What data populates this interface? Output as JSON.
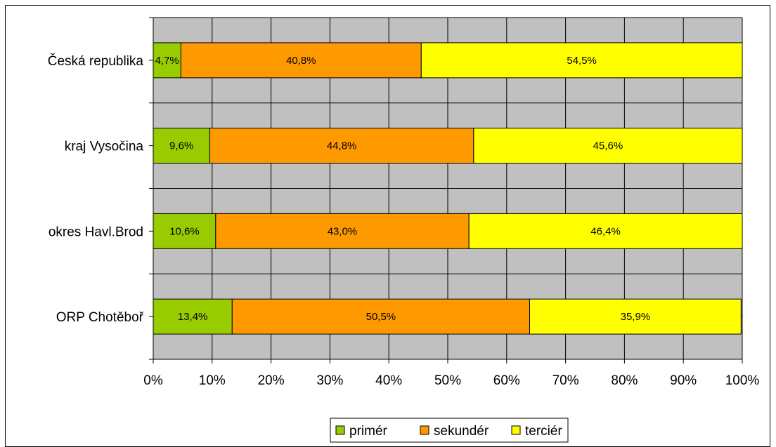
{
  "chart_data": {
    "type": "bar",
    "orientation": "horizontal",
    "stacked": "percent",
    "categories": [
      "Česká republika",
      "kraj Vysočina",
      "okres Havl.Brod",
      "ORP Chotěboř"
    ],
    "series": [
      {
        "name": "primér",
        "color": "#99cc00",
        "values": [
          4.7,
          9.6,
          10.6,
          13.4
        ],
        "labels": [
          "4,7%",
          "9,6%",
          "10,6%",
          "13,4%"
        ]
      },
      {
        "name": "sekundér",
        "color": "#ff9900",
        "values": [
          40.8,
          44.8,
          43.0,
          50.5
        ],
        "labels": [
          "40,8%",
          "44,8%",
          "43,0%",
          "50,5%"
        ]
      },
      {
        "name": "terciér",
        "color": "#ffff00",
        "values": [
          54.5,
          45.6,
          46.4,
          35.9
        ],
        "labels": [
          "54,5%",
          "45,6%",
          "46,4%",
          "35,9%"
        ]
      }
    ],
    "xlim": [
      0,
      100
    ],
    "xticks": [
      "0%",
      "10%",
      "20%",
      "30%",
      "40%",
      "50%",
      "60%",
      "70%",
      "80%",
      "90%",
      "100%"
    ],
    "grid": true,
    "plot_background": "#c0c0c0",
    "legend_position": "bottom"
  }
}
